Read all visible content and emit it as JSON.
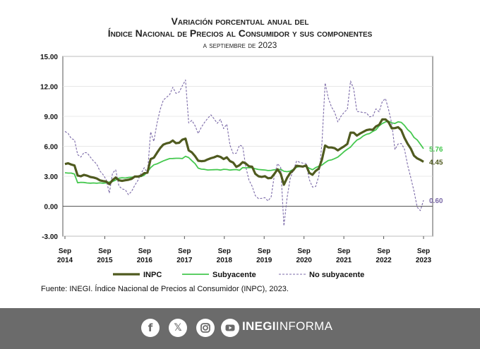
{
  "header": {
    "title_line1": "Variación porcentual anual del",
    "title_line2": "Índice Nacional de Precios al Consumidor y sus componentes",
    "subtitle": "a septiembre de 2023"
  },
  "source_text": "Fuente: INEGI. Índice Nacional de Precios al Consumidor (INPC), 2023.",
  "footer": {
    "brand_bold": "INEGI",
    "brand_light": "INFORMA",
    "icons": [
      "facebook-icon",
      "x-twitter-icon",
      "instagram-icon",
      "youtube-icon"
    ]
  },
  "chart_data": {
    "type": "line",
    "ylim": [
      -3,
      15
    ],
    "yticks": [
      "15.00",
      "12.00",
      "9.00",
      "6.00",
      "3.00",
      "0.00",
      "-3.00"
    ],
    "xticks": [
      {
        "month": "Sep",
        "year": "2014"
      },
      {
        "month": "Sep",
        "year": "2015"
      },
      {
        "month": "Sep",
        "year": "2016"
      },
      {
        "month": "Sep",
        "year": "2017"
      },
      {
        "month": "Sep",
        "year": "2018"
      },
      {
        "month": "Sep",
        "year": "2019"
      },
      {
        "month": "Sep",
        "year": "2020"
      },
      {
        "month": "Sep",
        "year": "2021"
      },
      {
        "month": "Sep",
        "year": "2022"
      },
      {
        "month": "Sep",
        "year": "2023"
      }
    ],
    "start": "Sep 2014",
    "end": "Sep 2023",
    "series": [
      {
        "name": "INPC",
        "color": "#4f5a1f",
        "end_label": "4.45",
        "values": [
          4.22,
          4.3,
          4.17,
          4.08,
          3.07,
          3.0,
          3.14,
          3.06,
          2.93,
          2.87,
          2.78,
          2.59,
          2.52,
          2.48,
          2.21,
          2.61,
          2.87,
          2.6,
          2.54,
          2.6,
          2.65,
          2.74,
          2.97,
          2.97,
          3.06,
          3.31,
          3.36,
          4.72,
          4.86,
          5.35,
          5.82,
          6.17,
          6.3,
          6.37,
          6.58,
          6.31,
          6.35,
          6.66,
          6.77,
          5.59,
          5.39,
          5.02,
          4.55,
          4.51,
          4.54,
          4.69,
          4.81,
          4.9,
          5.03,
          4.94,
          4.72,
          4.9,
          4.52,
          4.37,
          3.94,
          4.11,
          4.41,
          4.28,
          4.0,
          3.95,
          3.25,
          3.0,
          2.94,
          3.01,
          2.8,
          2.83,
          3.24,
          3.7,
          3.25,
          2.15,
          2.84,
          3.33,
          3.62,
          4.05,
          4.01,
          3.97,
          4.09,
          3.33,
          3.15,
          3.54,
          3.76,
          4.67,
          6.08,
          5.89,
          5.88,
          5.81,
          5.59,
          5.81,
          6.0,
          6.24,
          7.37,
          7.36,
          7.07,
          7.28,
          7.45,
          7.62,
          7.68,
          7.65,
          7.99,
          8.15,
          8.7,
          8.7,
          8.41,
          7.8,
          7.82,
          7.91,
          7.62,
          6.85,
          6.25,
          5.76,
          5.06,
          4.79,
          4.64,
          4.45
        ]
      },
      {
        "name": "Subyacente",
        "color": "#45c84f",
        "end_label": "5.76",
        "values": [
          3.35,
          3.32,
          3.32,
          3.22,
          2.35,
          2.39,
          2.38,
          2.33,
          2.31,
          2.33,
          2.3,
          2.34,
          2.31,
          2.33,
          2.43,
          2.48,
          2.62,
          2.8,
          2.85,
          2.82,
          2.88,
          2.9,
          2.93,
          2.96,
          2.97,
          3.11,
          3.44,
          3.86,
          4.14,
          4.24,
          4.39,
          4.54,
          4.66,
          4.77,
          4.78,
          4.8,
          4.8,
          4.77,
          5.0,
          4.87,
          4.56,
          4.27,
          3.81,
          3.71,
          3.69,
          3.63,
          3.64,
          3.66,
          3.67,
          3.62,
          3.7,
          3.68,
          3.62,
          3.66,
          3.67,
          3.6,
          3.87,
          3.84,
          3.87,
          3.85,
          3.75,
          3.68,
          3.65,
          3.63,
          3.57,
          3.59,
          3.65,
          3.66,
          3.69,
          3.5,
          3.46,
          3.52,
          3.69,
          3.91,
          3.97,
          3.98,
          3.99,
          3.8,
          3.66,
          3.87,
          4.0,
          4.12,
          4.37,
          4.58,
          4.64,
          4.77,
          4.92,
          5.19,
          5.48,
          5.71,
          5.92,
          6.3,
          6.62,
          6.78,
          7.04,
          7.2,
          7.28,
          7.49,
          7.65,
          8.05,
          8.28,
          8.44,
          8.51,
          8.35,
          8.29,
          8.45,
          8.39,
          8.09,
          7.67,
          7.39,
          6.89,
          6.64,
          6.21,
          5.76
        ]
      },
      {
        "name": "No subyacente",
        "color": "#7b6aa8",
        "end_label": "0.60",
        "values": [
          7.49,
          7.29,
          6.77,
          6.65,
          5.17,
          4.92,
          5.38,
          5.34,
          4.92,
          4.52,
          4.22,
          3.53,
          3.18,
          2.67,
          1.31,
          3.32,
          3.64,
          2.04,
          1.73,
          1.66,
          1.16,
          1.48,
          2.09,
          2.59,
          3.28,
          3.86,
          3.33,
          7.44,
          6.49,
          8.3,
          9.68,
          10.63,
          10.9,
          11.18,
          11.91,
          11.3,
          11.43,
          12.05,
          12.64,
          8.34,
          8.59,
          8.07,
          7.28,
          7.92,
          8.39,
          8.8,
          9.15,
          8.75,
          8.3,
          8.7,
          7.77,
          8.22,
          6.11,
          5.27,
          5.31,
          6.11,
          5.99,
          3.94,
          2.62,
          2.0,
          1.06,
          0.76,
          0.79,
          0.86,
          0.53,
          0.95,
          3.12,
          4.27,
          3.87,
          -1.96,
          0.85,
          2.81,
          3.6,
          4.53,
          4.4,
          4.31,
          4.25,
          2.66,
          1.92,
          1.97,
          3.02,
          6.3,
          12.34,
          10.83,
          9.94,
          9.41,
          8.44,
          9.01,
          9.41,
          9.7,
          12.54,
          11.73,
          9.49,
          9.45,
          9.37,
          9.35,
          8.95,
          9.01,
          9.75,
          9.45,
          10.48,
          10.78,
          9.67,
          8.26,
          5.67,
          6.23,
          6.28,
          5.72,
          4.11,
          2.84,
          1.51,
          -0.09,
          -0.44,
          0.6
        ]
      }
    ]
  }
}
